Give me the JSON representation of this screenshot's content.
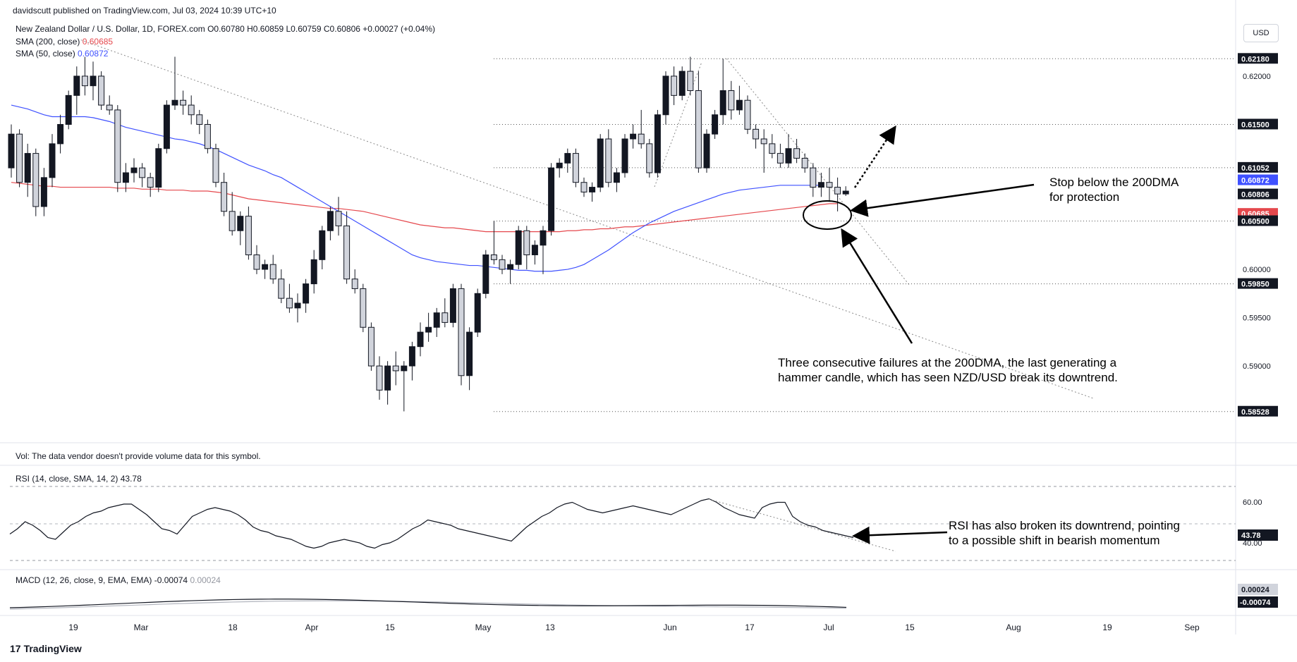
{
  "header": {
    "published": "davidscutt published on TradingView.com, Jul 03, 2024 10:39 UTC+10",
    "symbol_line": "New Zealand Dollar / U.S. Dollar, 1D, FOREX.com O0.60780 H0.60859 L0.60759 C0.60806 +0.00027 (+0.04%)",
    "sma200_label": "SMA (200, close)",
    "sma200_value": "0.60685",
    "sma50_label": "SMA (50, close)",
    "sma50_value": "0.60872",
    "currency": "USD"
  },
  "volume_note": "Vol: The data vendor doesn't provide volume data for this symbol.",
  "rsi_panel": {
    "label": "RSI (14, close, SMA, 14, 2)",
    "value": "43.78",
    "ticks": [
      "60.00",
      "40.00"
    ]
  },
  "macd_panel": {
    "label": "MACD (12, 26, close, 9, EMA, EMA)",
    "macd": "-0.00074",
    "signal": "0.00024"
  },
  "price_axis": {
    "ticks": [
      "0.62000",
      "0.60000",
      "0.59500",
      "0.59000"
    ],
    "tags": [
      {
        "label": "0.62180",
        "color": "#131722"
      },
      {
        "label": "0.61500",
        "color": "#131722"
      },
      {
        "label": "0.61052",
        "color": "#131722"
      },
      {
        "label": "0.60872",
        "color": "#3f51ff"
      },
      {
        "label": "0.60806",
        "color": "#131722"
      },
      {
        "label": "0.60685",
        "color": "#e5484d"
      },
      {
        "label": "0.60500",
        "color": "#131722"
      },
      {
        "label": "0.59850",
        "color": "#131722"
      },
      {
        "label": "0.58528",
        "color": "#131722"
      }
    ]
  },
  "time_axis": [
    "19",
    "Mar",
    "18",
    "Apr",
    "15",
    "May",
    "13",
    "Jun",
    "17",
    "Jul",
    "15",
    "Aug",
    "19",
    "Sep"
  ],
  "annotations": {
    "stop": [
      "Stop below the 200DMA",
      "for protection"
    ],
    "failures": [
      "Three consecutive failures at the 200DMA, the last generating a",
      "hammer candle, which has seen NZD/USD break its downtrend."
    ],
    "rsi": [
      "RSI has also broken its downtrend, pointing",
      "to a possible shift in bearish momentum"
    ]
  },
  "brand": "TradingView",
  "chart_data": {
    "type": "candlestick",
    "pair": "NZD/USD",
    "y_range": [
      0.583,
      0.6235
    ],
    "levels": [
      0.6218,
      0.615,
      0.61052,
      0.605,
      0.5985,
      0.58528
    ],
    "candles": [
      [
        0.6105,
        0.615,
        0.6095,
        0.614
      ],
      [
        0.614,
        0.6145,
        0.6085,
        0.609
      ],
      [
        0.609,
        0.613,
        0.6075,
        0.612
      ],
      [
        0.612,
        0.6125,
        0.6055,
        0.6065
      ],
      [
        0.6065,
        0.6105,
        0.6055,
        0.6095
      ],
      [
        0.6095,
        0.614,
        0.6085,
        0.613
      ],
      [
        0.613,
        0.616,
        0.612,
        0.615
      ],
      [
        0.615,
        0.6185,
        0.6145,
        0.618
      ],
      [
        0.618,
        0.621,
        0.616,
        0.62
      ],
      [
        0.62,
        0.622,
        0.618,
        0.619
      ],
      [
        0.619,
        0.6215,
        0.6175,
        0.62
      ],
      [
        0.62,
        0.6205,
        0.6165,
        0.617
      ],
      [
        0.617,
        0.618,
        0.616,
        0.6165
      ],
      [
        0.6165,
        0.617,
        0.608,
        0.609
      ],
      [
        0.609,
        0.611,
        0.608,
        0.61
      ],
      [
        0.61,
        0.6115,
        0.609,
        0.6105
      ],
      [
        0.6105,
        0.611,
        0.6085,
        0.6095
      ],
      [
        0.6095,
        0.61,
        0.6075,
        0.6085
      ],
      [
        0.6085,
        0.613,
        0.608,
        0.6125
      ],
      [
        0.6125,
        0.6175,
        0.612,
        0.617
      ],
      [
        0.617,
        0.622,
        0.6165,
        0.6175
      ],
      [
        0.6175,
        0.6185,
        0.616,
        0.617
      ],
      [
        0.617,
        0.618,
        0.615,
        0.616
      ],
      [
        0.616,
        0.6165,
        0.614,
        0.615
      ],
      [
        0.615,
        0.6155,
        0.612,
        0.6125
      ],
      [
        0.6125,
        0.613,
        0.6085,
        0.609
      ],
      [
        0.609,
        0.61,
        0.6055,
        0.606
      ],
      [
        0.606,
        0.608,
        0.6035,
        0.604
      ],
      [
        0.604,
        0.606,
        0.6025,
        0.6055
      ],
      [
        0.6055,
        0.6065,
        0.601,
        0.6015
      ],
      [
        0.6015,
        0.6025,
        0.5995,
        0.6
      ],
      [
        0.6,
        0.601,
        0.599,
        0.6005
      ],
      [
        0.6005,
        0.6015,
        0.5985,
        0.599
      ],
      [
        0.599,
        0.6,
        0.5965,
        0.597
      ],
      [
        0.597,
        0.5985,
        0.5955,
        0.596
      ],
      [
        0.596,
        0.5975,
        0.5945,
        0.5965
      ],
      [
        0.5965,
        0.599,
        0.5955,
        0.5985
      ],
      [
        0.5985,
        0.602,
        0.5975,
        0.601
      ],
      [
        0.601,
        0.6045,
        0.6,
        0.604
      ],
      [
        0.604,
        0.6065,
        0.603,
        0.606
      ],
      [
        0.606,
        0.6075,
        0.6035,
        0.6045
      ],
      [
        0.6045,
        0.606,
        0.5985,
        0.599
      ],
      [
        0.599,
        0.6,
        0.5975,
        0.598
      ],
      [
        0.598,
        0.5985,
        0.5935,
        0.594
      ],
      [
        0.594,
        0.5945,
        0.5895,
        0.59
      ],
      [
        0.59,
        0.591,
        0.5865,
        0.5875
      ],
      [
        0.5875,
        0.5905,
        0.586,
        0.59
      ],
      [
        0.59,
        0.5915,
        0.588,
        0.5895
      ],
      [
        0.5895,
        0.5905,
        0.5853,
        0.59
      ],
      [
        0.59,
        0.5925,
        0.5885,
        0.592
      ],
      [
        0.592,
        0.5945,
        0.591,
        0.5935
      ],
      [
        0.5935,
        0.5955,
        0.5925,
        0.594
      ],
      [
        0.594,
        0.596,
        0.593,
        0.5955
      ],
      [
        0.5955,
        0.597,
        0.594,
        0.5945
      ],
      [
        0.5945,
        0.5985,
        0.594,
        0.598
      ],
      [
        0.598,
        0.5985,
        0.588,
        0.589
      ],
      [
        0.589,
        0.594,
        0.5875,
        0.5935
      ],
      [
        0.5935,
        0.598,
        0.593,
        0.5975
      ],
      [
        0.5975,
        0.602,
        0.597,
        0.6015
      ],
      [
        0.6015,
        0.605,
        0.6005,
        0.601
      ],
      [
        0.601,
        0.6015,
        0.5995,
        0.6
      ],
      [
        0.6,
        0.601,
        0.5985,
        0.6005
      ],
      [
        0.6005,
        0.6045,
        0.6,
        0.604
      ],
      [
        0.604,
        0.6045,
        0.6,
        0.6015
      ],
      [
        0.6015,
        0.603,
        0.6005,
        0.6025
      ],
      [
        0.6025,
        0.6045,
        0.5995,
        0.604
      ],
      [
        0.604,
        0.611,
        0.6035,
        0.6105
      ],
      [
        0.6105,
        0.6115,
        0.6095,
        0.611
      ],
      [
        0.611,
        0.6125,
        0.61,
        0.612
      ],
      [
        0.612,
        0.6125,
        0.6085,
        0.609
      ],
      [
        0.609,
        0.6095,
        0.6075,
        0.608
      ],
      [
        0.608,
        0.609,
        0.607,
        0.6085
      ],
      [
        0.6085,
        0.614,
        0.608,
        0.6135
      ],
      [
        0.6135,
        0.6145,
        0.6085,
        0.609
      ],
      [
        0.609,
        0.6105,
        0.608,
        0.61
      ],
      [
        0.61,
        0.614,
        0.6095,
        0.6135
      ],
      [
        0.6135,
        0.615,
        0.6125,
        0.614
      ],
      [
        0.614,
        0.6165,
        0.6125,
        0.613
      ],
      [
        0.613,
        0.6135,
        0.6095,
        0.61
      ],
      [
        0.61,
        0.6165,
        0.6095,
        0.616
      ],
      [
        0.616,
        0.6205,
        0.615,
        0.62
      ],
      [
        0.62,
        0.621,
        0.617,
        0.618
      ],
      [
        0.618,
        0.621,
        0.6175,
        0.6205
      ],
      [
        0.6205,
        0.622,
        0.618,
        0.6185
      ],
      [
        0.6185,
        0.6205,
        0.61,
        0.6105
      ],
      [
        0.6105,
        0.6145,
        0.61,
        0.614
      ],
      [
        0.614,
        0.6165,
        0.6135,
        0.616
      ],
      [
        0.616,
        0.6218,
        0.615,
        0.6185
      ],
      [
        0.6185,
        0.6195,
        0.6155,
        0.6165
      ],
      [
        0.6165,
        0.619,
        0.616,
        0.6175
      ],
      [
        0.6175,
        0.618,
        0.614,
        0.6145
      ],
      [
        0.6145,
        0.615,
        0.6125,
        0.6135
      ],
      [
        0.6135,
        0.6145,
        0.61,
        0.613
      ],
      [
        0.613,
        0.614,
        0.6115,
        0.612
      ],
      [
        0.612,
        0.613,
        0.6105,
        0.611
      ],
      [
        0.611,
        0.614,
        0.6105,
        0.6125
      ],
      [
        0.6125,
        0.6135,
        0.611,
        0.6115
      ],
      [
        0.6115,
        0.612,
        0.61,
        0.6105
      ],
      [
        0.6105,
        0.611,
        0.6075,
        0.6085
      ],
      [
        0.6085,
        0.61,
        0.6075,
        0.609
      ],
      [
        0.609,
        0.6105,
        0.607,
        0.6085
      ],
      [
        0.6085,
        0.6095,
        0.606,
        0.6078
      ],
      [
        0.6078,
        0.6086,
        0.6076,
        0.6081
      ]
    ],
    "sma200": [
      0.609,
      0.6089,
      0.6088,
      0.6087,
      0.6086,
      0.6086,
      0.6085,
      0.6085,
      0.6085,
      0.6085,
      0.6085,
      0.6085,
      0.6085,
      0.6084,
      0.6084,
      0.6084,
      0.6083,
      0.6083,
      0.6083,
      0.6082,
      0.6082,
      0.6082,
      0.6081,
      0.6081,
      0.6081,
      0.608,
      0.6079,
      0.6077,
      0.6075,
      0.6073,
      0.6072,
      0.6071,
      0.607,
      0.6069,
      0.6068,
      0.6067,
      0.6066,
      0.6065,
      0.6064,
      0.6063,
      0.6063,
      0.6062,
      0.6061,
      0.606,
      0.6058,
      0.6056,
      0.6054,
      0.6052,
      0.605,
      0.6048,
      0.6046,
      0.6045,
      0.6044,
      0.6043,
      0.6043,
      0.6042,
      0.6041,
      0.604,
      0.6039,
      0.6039,
      0.6039,
      0.6039,
      0.6039,
      0.6039,
      0.6039,
      0.6039,
      0.6039,
      0.6039,
      0.604,
      0.604,
      0.6041,
      0.6041,
      0.6042,
      0.6042,
      0.6043,
      0.6044,
      0.6044,
      0.6045,
      0.6046,
      0.6047,
      0.6048,
      0.6049,
      0.605,
      0.6051,
      0.6052,
      0.6053,
      0.6054,
      0.6055,
      0.6056,
      0.6057,
      0.6058,
      0.6059,
      0.606,
      0.6061,
      0.6062,
      0.6063,
      0.6064,
      0.6065,
      0.6066,
      0.6067,
      0.6068,
      0.6068
    ],
    "sma50": [
      0.617,
      0.6168,
      0.6166,
      0.6163,
      0.616,
      0.6158,
      0.6158,
      0.6158,
      0.6158,
      0.6158,
      0.6157,
      0.6155,
      0.6153,
      0.615,
      0.6147,
      0.6145,
      0.6143,
      0.6141,
      0.6139,
      0.6137,
      0.6135,
      0.6134,
      0.6132,
      0.613,
      0.6127,
      0.6124,
      0.612,
      0.6116,
      0.6112,
      0.6108,
      0.6105,
      0.6102,
      0.6098,
      0.6095,
      0.609,
      0.6085,
      0.608,
      0.6075,
      0.607,
      0.6065,
      0.606,
      0.6055,
      0.605,
      0.6045,
      0.604,
      0.6035,
      0.603,
      0.6025,
      0.602,
      0.6015,
      0.6012,
      0.601,
      0.6008,
      0.6007,
      0.6006,
      0.6005,
      0.6004,
      0.6004,
      0.6003,
      0.6002,
      0.6001,
      0.6,
      0.5999,
      0.5999,
      0.5998,
      0.5998,
      0.5998,
      0.5999,
      0.6,
      0.6002,
      0.6005,
      0.601,
      0.6015,
      0.602,
      0.6026,
      0.6032,
      0.6038,
      0.6043,
      0.6048,
      0.6052,
      0.6056,
      0.606,
      0.6063,
      0.6066,
      0.6069,
      0.6072,
      0.6075,
      0.6078,
      0.608,
      0.6082,
      0.6083,
      0.6084,
      0.6085,
      0.6086,
      0.6087,
      0.6087,
      0.6087,
      0.6087,
      0.6087,
      0.6087
    ]
  }
}
